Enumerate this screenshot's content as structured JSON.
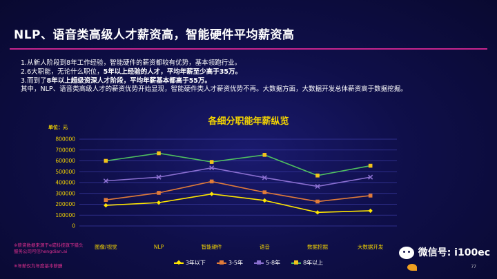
{
  "page": {
    "title": "NLP、语音类高级人才薪资高，智能硬件平均薪资高",
    "notes": [
      {
        "text": "1.从新人阶段到8年工作经验，智能硬件的薪资都较有优势，基本领跑行业。",
        "bold": ""
      },
      {
        "text": "2.6大职能，无论什么职位，",
        "bold": "5年以上经验的人才，平均年薪至少高于35万。"
      },
      {
        "text": "3.而到了",
        "bold": "8年以上超级资深人才阶段，平均年薪基本都高于55万。"
      },
      {
        "text": "   其中，NLP、语音类高级人才的薪资优势开始显现，智能硬件类人才薪资优势不再。大数据方面，大数据开发总体薪资高于数据挖掘。",
        "bold": ""
      }
    ],
    "footnotes": [
      "※薪资数据来源于e成科技旗下猎头",
      "服务公司可信hengdian.ai",
      "※年薪仅为年度基本薪酬"
    ],
    "watermark": "微信号: i100ec",
    "page_number": "77"
  },
  "colors": {
    "background": "#0f0f4a",
    "axis_text": "#f5d500",
    "grid": "#3a3aa0",
    "accent": "#c8258e"
  },
  "chart_data": {
    "type": "line",
    "title": "各细分职能年薪纵览",
    "ylabel": "单位：元",
    "categories": [
      "图像/视觉",
      "NLP",
      "智能硬件",
      "语音",
      "数据挖掘",
      "大数据开发"
    ],
    "ylim": [
      0,
      800000
    ],
    "yticks": [
      0,
      100000,
      200000,
      300000,
      400000,
      500000,
      600000,
      700000,
      800000
    ],
    "grid": true,
    "legend_position": "bottom",
    "series": [
      {
        "name": "3年以下",
        "color": "#ffe600",
        "marker": "diamond",
        "values": [
          190000,
          215000,
          295000,
          235000,
          125000,
          140000
        ]
      },
      {
        "name": "3-5年",
        "color": "#e07b39",
        "marker": "square",
        "values": [
          240000,
          305000,
          410000,
          310000,
          225000,
          280000
        ]
      },
      {
        "name": "5-8年",
        "color": "#8a6fd0",
        "marker": "cross",
        "values": [
          415000,
          450000,
          535000,
          445000,
          365000,
          450000
        ]
      },
      {
        "name": "8年以上",
        "color": "#f2c21a",
        "marker": "square",
        "values": [
          600000,
          670000,
          590000,
          655000,
          465000,
          555000
        ]
      }
    ],
    "line_colors_override": [
      "#ffe600",
      "#e07b39",
      "#8a6fd0",
      "#4fbf5f"
    ]
  }
}
